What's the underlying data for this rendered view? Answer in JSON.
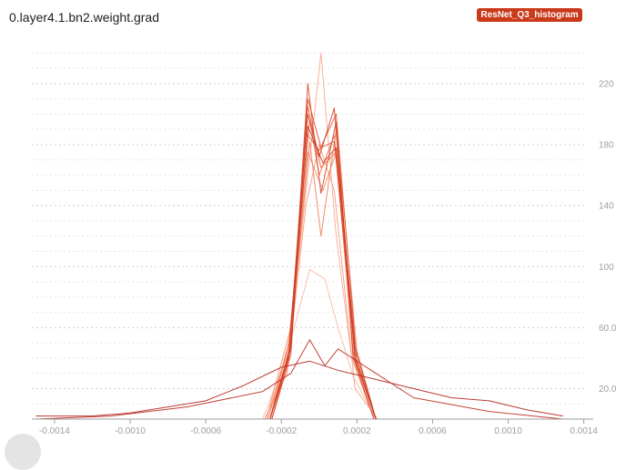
{
  "card": {
    "title": "0.layer4.1.bn2.weight.grad",
    "run_badge": "ResNet_Q3_histogram"
  },
  "colors": {
    "badge": "#c9391a",
    "series_light": "#f7b9a2",
    "series_dark": "#b3261e",
    "grid": "#d9d9d9",
    "tick_text": "#9e9e9e"
  },
  "chart_data": {
    "type": "line",
    "title": "0.layer4.1.bn2.weight.grad",
    "xlabel": "",
    "ylabel": "",
    "xlim": [
      -0.00152,
      0.00145
    ],
    "ylim": [
      0,
      248
    ],
    "x_ticks": [
      "-0.0014",
      "-0.0010",
      "-0.0006",
      "-0.0002",
      "0.0002",
      "0.0006",
      "0.0010",
      "0.0014"
    ],
    "x_tick_values": [
      -0.0014,
      -0.001,
      -0.0006,
      -0.0002,
      0.0002,
      0.0006,
      0.001,
      0.0014
    ],
    "y_ticks": [
      "20.0",
      "60.0",
      "100",
      "140",
      "180",
      "220"
    ],
    "y_tick_values": [
      20,
      60,
      100,
      140,
      180,
      220
    ],
    "grid": true,
    "legend": "none",
    "series_style": "overlaid histogram outlines, one per training step, light (early) to dark (late)",
    "series": [
      {
        "x": [
          -0.00147,
          -0.0003,
          -0.00018,
          -5e-05,
          3e-05,
          0.0001,
          0.00018,
          0.0003,
          0.00129
        ],
        "values": [
          0,
          0,
          38,
          98,
          92,
          60,
          28,
          0,
          0
        ]
      },
      {
        "x": [
          -0.00147,
          -0.00028,
          -0.00016,
          -6e-05,
          1e-05,
          9e-05,
          0.00017,
          0.00029,
          0.00129
        ],
        "values": [
          0,
          0,
          46,
          160,
          240,
          120,
          42,
          0,
          0
        ]
      },
      {
        "x": [
          -0.00147,
          -0.00029,
          -0.00017,
          -7e-05,
          0.0,
          8e-05,
          0.00019,
          0.00031,
          0.00129
        ],
        "values": [
          0,
          0,
          30,
          140,
          180,
          150,
          20,
          0,
          0
        ]
      },
      {
        "x": [
          -0.00147,
          -0.00028,
          -0.00015,
          -6e-05,
          2e-05,
          0.0001,
          0.0002,
          0.0003,
          0.00129
        ],
        "values": [
          0,
          0,
          60,
          175,
          150,
          178,
          45,
          0,
          0
        ]
      },
      {
        "x": [
          -0.00147,
          -0.00026,
          -0.00015,
          -5e-05,
          1e-05,
          9e-05,
          0.00018,
          0.00029,
          0.00129
        ],
        "values": [
          0,
          0,
          55,
          182,
          120,
          190,
          38,
          0,
          0
        ]
      },
      {
        "x": [
          -0.00147,
          -0.00027,
          -0.00016,
          -5e-05,
          0.0,
          8e-05,
          0.00018,
          0.0003,
          0.00129
        ],
        "values": [
          0,
          0,
          50,
          196,
          160,
          186,
          44,
          0,
          0
        ]
      },
      {
        "x": [
          -0.00147,
          -0.00026,
          -0.00015,
          -6e-05,
          1e-05,
          9e-05,
          0.00019,
          0.0003,
          0.00129
        ],
        "values": [
          0,
          0,
          48,
          205,
          165,
          175,
          40,
          0,
          0
        ]
      },
      {
        "x": [
          -0.00147,
          -0.00025,
          -0.00015,
          -7e-05,
          0.0,
          9e-05,
          0.0002,
          0.0003,
          0.00129
        ],
        "values": [
          0,
          0,
          42,
          188,
          176,
          200,
          36,
          0,
          0
        ]
      },
      {
        "x": [
          -0.00147,
          -0.00026,
          -0.00016,
          -6e-05,
          1e-05,
          8e-05,
          0.00019,
          0.0003,
          0.00129
        ],
        "values": [
          0,
          0,
          40,
          210,
          178,
          182,
          43,
          0,
          0
        ]
      },
      {
        "x": [
          -0.00147,
          -0.00025,
          -0.00015,
          -6e-05,
          1e-05,
          9e-05,
          0.00018,
          0.00029,
          0.00129
        ],
        "values": [
          0,
          0,
          46,
          220,
          148,
          195,
          41,
          0,
          0
        ]
      },
      {
        "x": [
          -0.00147,
          -0.00026,
          -0.00016,
          -6e-05,
          0.0,
          8e-05,
          0.00019,
          0.0003,
          0.00129
        ],
        "values": [
          0,
          0,
          44,
          200,
          172,
          204,
          39,
          0,
          0
        ]
      },
      {
        "x": [
          -0.00147,
          -0.00026,
          -0.00015,
          -6e-05,
          2e-05,
          9e-05,
          0.00019,
          0.0003,
          0.00129
        ],
        "values": [
          0,
          0,
          47,
          192,
          168,
          178,
          47,
          0,
          0
        ]
      },
      {
        "x": [
          -0.0015,
          -0.0011,
          -0.0007,
          -0.0003,
          -0.00015,
          -5e-05,
          3e-05,
          0.0001,
          0.0003,
          0.0005,
          0.0009,
          0.00129
        ],
        "values": [
          0,
          2,
          8,
          18,
          30,
          52,
          35,
          46,
          30,
          14,
          5,
          0
        ]
      },
      {
        "x": [
          -0.0015,
          -0.0012,
          -0.001,
          -0.0008,
          -0.0006,
          -0.0004,
          -0.0002,
          -5e-05,
          0.0001,
          0.0003,
          0.0005,
          0.0007,
          0.0009,
          0.0011,
          0.00129
        ],
        "values": [
          2,
          2,
          4,
          8,
          12,
          22,
          34,
          38,
          32,
          26,
          20,
          14,
          12,
          6,
          2
        ]
      }
    ]
  }
}
